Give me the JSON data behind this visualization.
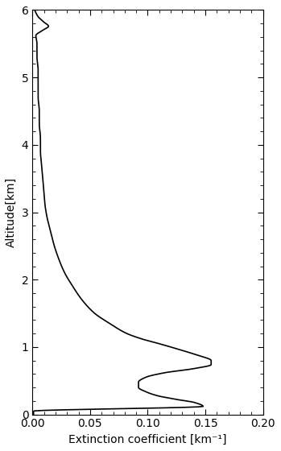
{
  "xlabel": "Extinction coefficient [km⁻¹]",
  "ylabel": "Altitude[km]",
  "xlim": [
    0.0,
    0.2
  ],
  "ylim": [
    0.0,
    6.0
  ],
  "xticks": [
    0.0,
    0.05,
    0.1,
    0.15,
    0.2
  ],
  "yticks": [
    0,
    1,
    2,
    3,
    4,
    5,
    6
  ],
  "line_color": "#000000",
  "line_width": 1.2,
  "bg_color": "#ffffff",
  "figsize": [
    3.49,
    5.6
  ],
  "dpi": 100,
  "key_alts": [
    0.0,
    0.05,
    0.12,
    0.18,
    0.22,
    0.28,
    0.34,
    0.4,
    0.48,
    0.55,
    0.62,
    0.68,
    0.74,
    0.8,
    0.88,
    0.96,
    1.04,
    1.12,
    1.2,
    1.35,
    1.5,
    1.7,
    1.9,
    2.1,
    2.3,
    2.5,
    2.7,
    2.9,
    3.1,
    3.3,
    3.5,
    3.7,
    3.9,
    4.1,
    4.3,
    4.5,
    4.7,
    4.9,
    5.1,
    5.3,
    5.5,
    5.62,
    5.7,
    5.76,
    5.82,
    5.9,
    5.96,
    6.0
  ],
  "key_ext": [
    0.001,
    0.001,
    0.148,
    0.14,
    0.126,
    0.108,
    0.098,
    0.092,
    0.092,
    0.098,
    0.115,
    0.14,
    0.155,
    0.155,
    0.143,
    0.128,
    0.112,
    0.095,
    0.082,
    0.067,
    0.054,
    0.043,
    0.035,
    0.028,
    0.023,
    0.019,
    0.016,
    0.013,
    0.011,
    0.01,
    0.009,
    0.008,
    0.007,
    0.007,
    0.006,
    0.006,
    0.005,
    0.005,
    0.005,
    0.004,
    0.004,
    0.003,
    0.009,
    0.014,
    0.01,
    0.005,
    0.003,
    0.002
  ]
}
